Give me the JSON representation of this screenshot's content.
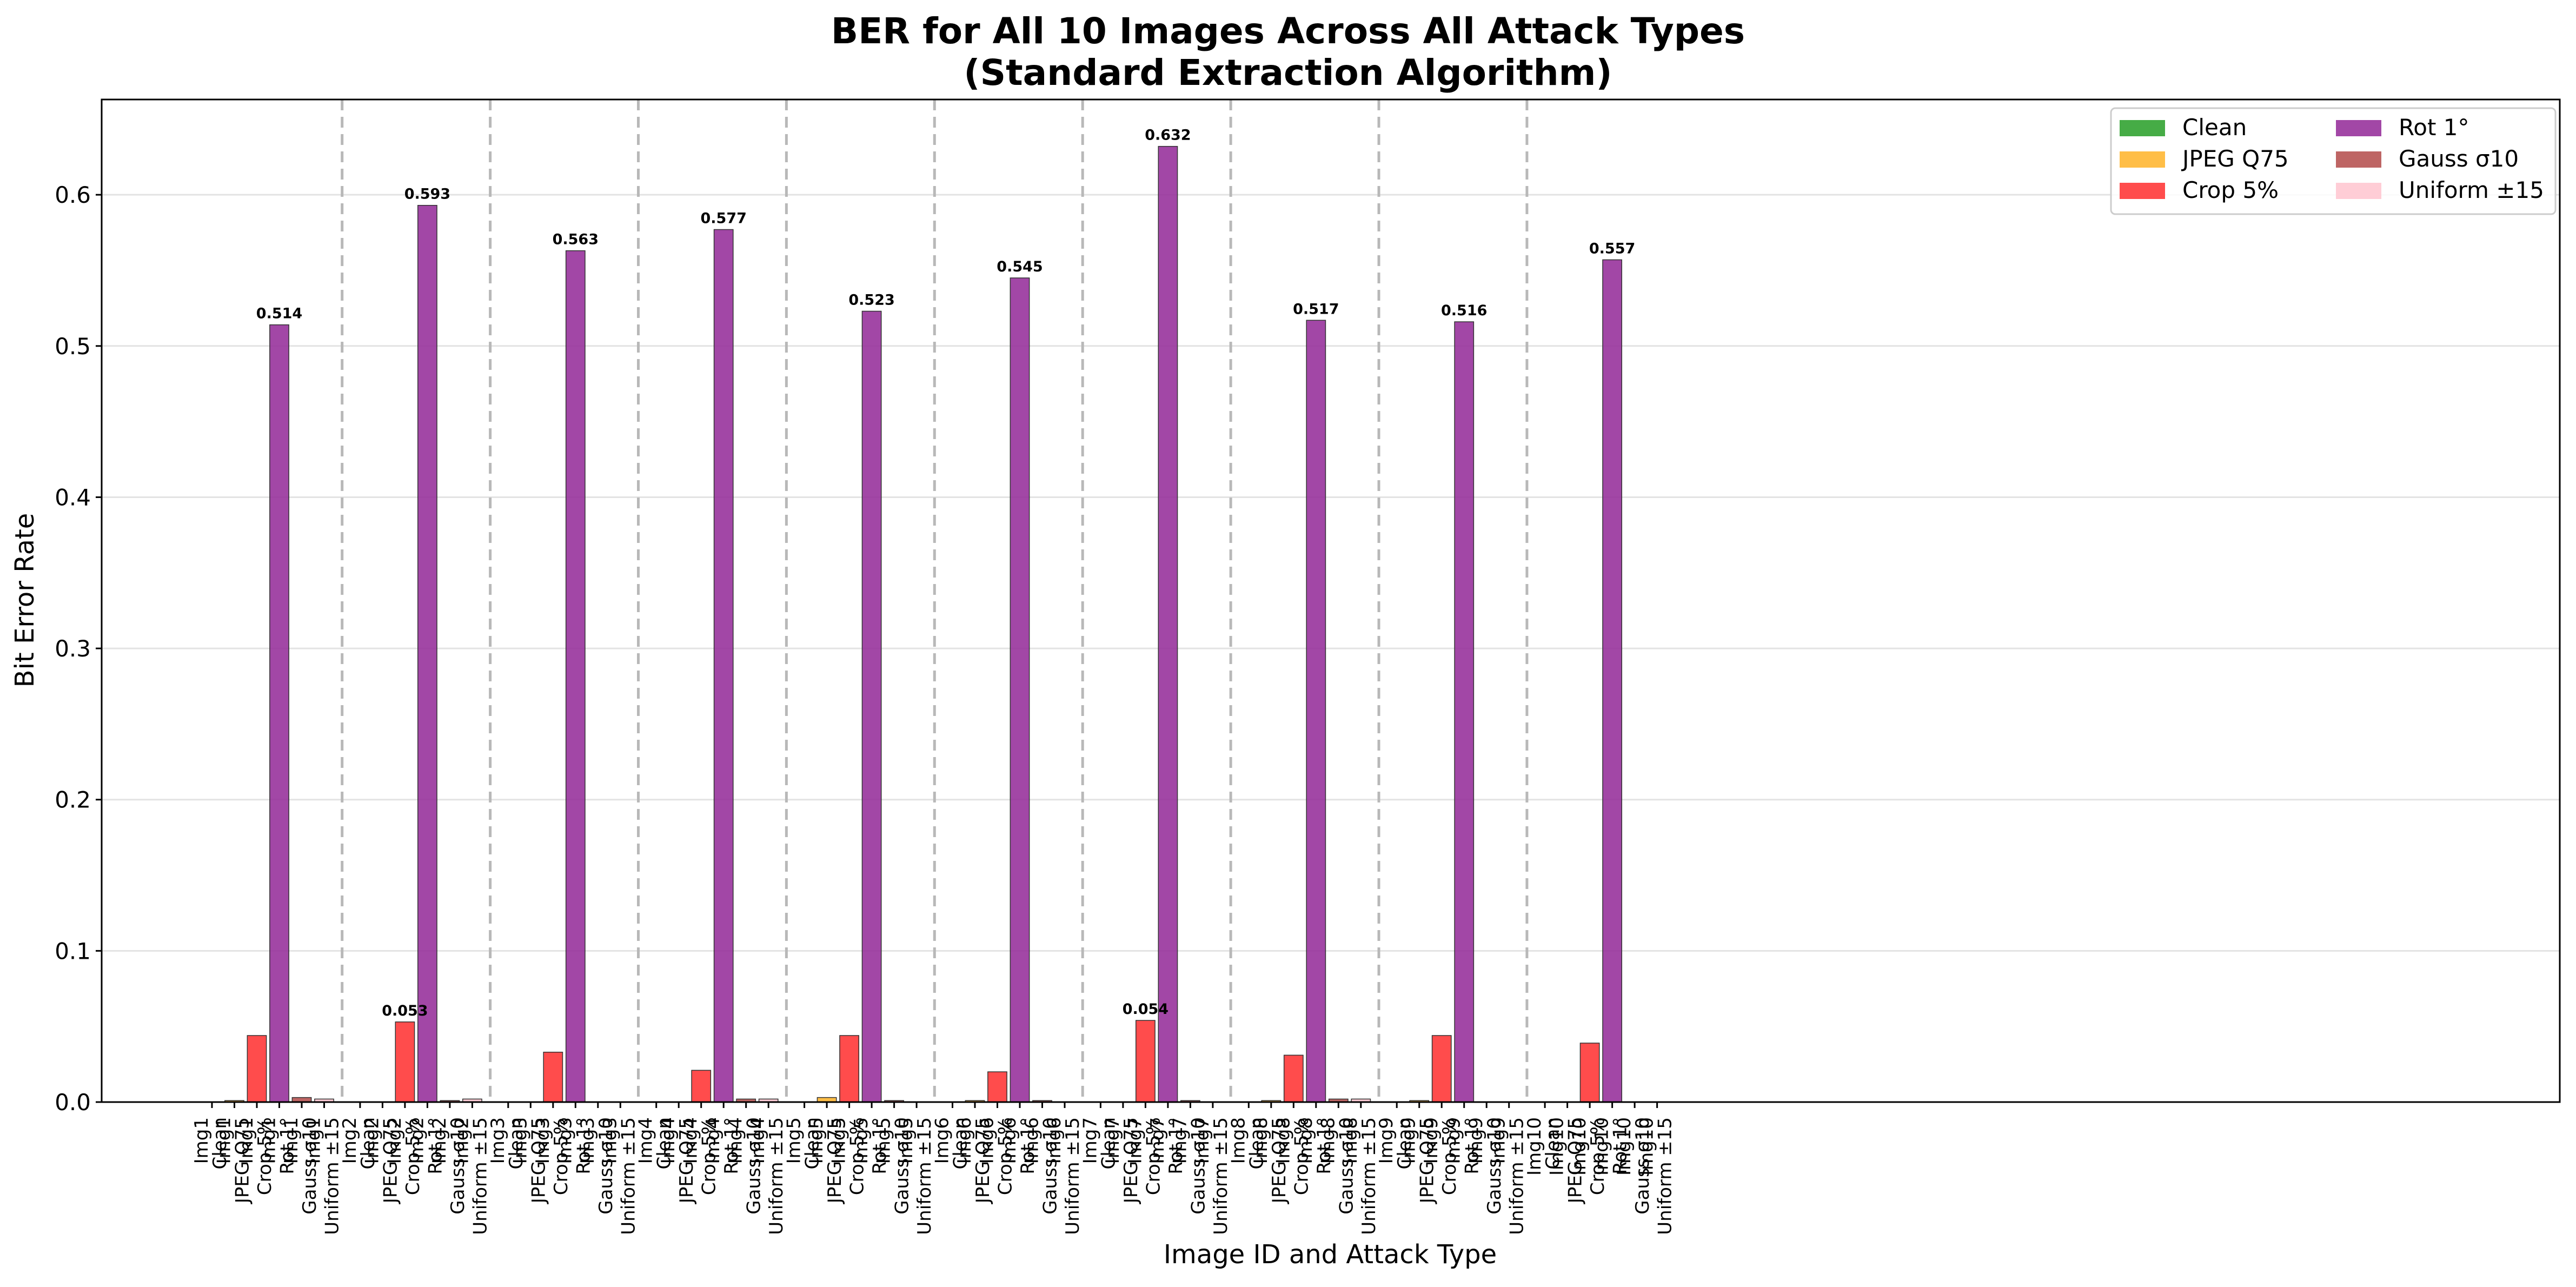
{
  "chart_data": {
    "type": "bar",
    "title": "BER for All 10 Images Across All Attack Types",
    "subtitle": "(Standard Extraction Algorithm)",
    "xlabel": "Image ID and Attack Type",
    "ylabel": "Bit Error Rate",
    "ylim": [
      0,
      0.663
    ],
    "yticks": [
      0.0,
      0.1,
      0.2,
      0.3,
      0.4,
      0.5,
      0.6
    ],
    "ytick_labels": [
      "0.0",
      "0.1",
      "0.2",
      "0.3",
      "0.4",
      "0.5",
      "0.6"
    ],
    "grid": "horizontal",
    "legend_position": "top-right",
    "attacks": [
      "Clean",
      "JPEG Q75",
      "Crop 5%",
      "Rot 1°",
      "Gauss σ10",
      "Uniform ±15"
    ],
    "colors": {
      "Clean": "#2ca02c",
      "JPEG Q75": "#ffb52e",
      "Crop 5%": "#ff3333",
      "Rot 1°": "#952e9a",
      "Gauss σ10": "#b5504f",
      "Uniform ±15": "#ffc6d0"
    },
    "legend": [
      {
        "label": "Clean",
        "color": "#2ca02c"
      },
      {
        "label": "JPEG Q75",
        "color": "#ffb52e"
      },
      {
        "label": "Crop 5%",
        "color": "#ff3333"
      },
      {
        "label": "Rot 1°",
        "color": "#952e9a"
      },
      {
        "label": "Gauss σ10",
        "color": "#b5504f"
      },
      {
        "label": "Uniform ±15",
        "color": "#ffc6d0"
      }
    ],
    "images": [
      "Img1",
      "Img2",
      "Img3",
      "Img4",
      "Img5",
      "Img6",
      "Img7",
      "Img8",
      "Img9",
      "Img10"
    ],
    "series": [
      {
        "name": "Clean",
        "values": [
          0,
          0,
          0,
          0,
          0,
          0,
          0,
          0,
          0,
          0
        ]
      },
      {
        "name": "JPEG Q75",
        "values": [
          0.001,
          0,
          0,
          0,
          0.003,
          0.001,
          0,
          0.001,
          0.001,
          0
        ]
      },
      {
        "name": "Crop 5%",
        "values": [
          0.044,
          0.053,
          0.033,
          0.021,
          0.044,
          0.02,
          0.054,
          0.031,
          0.044,
          0.039
        ]
      },
      {
        "name": "Rot 1°",
        "values": [
          0.514,
          0.593,
          0.563,
          0.577,
          0.523,
          0.545,
          0.632,
          0.517,
          0.516,
          0.557
        ]
      },
      {
        "name": "Gauss σ10",
        "values": [
          0.003,
          0.001,
          0,
          0.002,
          0.001,
          0.001,
          0.001,
          0.002,
          0,
          0
        ]
      },
      {
        "name": "Uniform ±15",
        "values": [
          0.002,
          0.002,
          0,
          0.002,
          0,
          0,
          0,
          0.002,
          0,
          0
        ]
      }
    ],
    "bar_labels": [
      {
        "image": "Img1",
        "attack": "Rot 1°",
        "text": "0.514"
      },
      {
        "image": "Img2",
        "attack": "Crop 5%",
        "text": "0.053"
      },
      {
        "image": "Img2",
        "attack": "Rot 1°",
        "text": "0.593"
      },
      {
        "image": "Img3",
        "attack": "Rot 1°",
        "text": "0.563"
      },
      {
        "image": "Img4",
        "attack": "Rot 1°",
        "text": "0.577"
      },
      {
        "image": "Img5",
        "attack": "Rot 1°",
        "text": "0.523"
      },
      {
        "image": "Img6",
        "attack": "Rot 1°",
        "text": "0.545"
      },
      {
        "image": "Img7",
        "attack": "Crop 5%",
        "text": "0.054"
      },
      {
        "image": "Img7",
        "attack": "Rot 1°",
        "text": "0.632"
      },
      {
        "image": "Img8",
        "attack": "Rot 1°",
        "text": "0.517"
      },
      {
        "image": "Img9",
        "attack": "Rot 1°",
        "text": "0.516"
      },
      {
        "image": "Img10",
        "attack": "Rot 1°",
        "text": "0.557"
      }
    ]
  }
}
